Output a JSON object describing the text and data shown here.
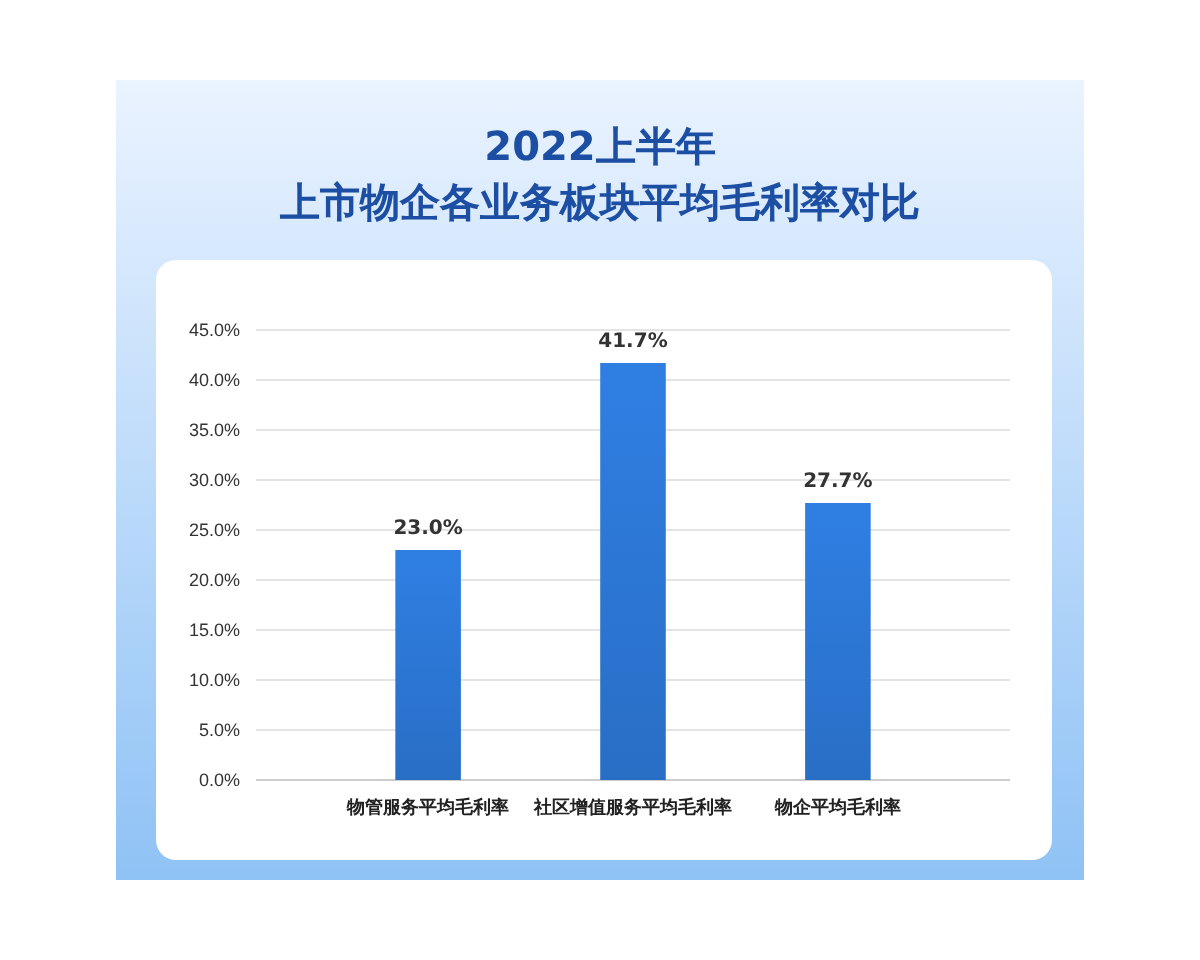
{
  "chart_data": {
    "type": "bar",
    "title": "2022上半年",
    "subtitle": "上市物企各业务板块平均毛利率对比",
    "categories": [
      "物管服务平均毛利率",
      "社区增值服务平均毛利率",
      "物企平均毛利率"
    ],
    "values": [
      23.0,
      41.7,
      27.7
    ],
    "value_labels": [
      "23.0%",
      "41.7%",
      "27.7%"
    ],
    "color": "#2f7fe3",
    "ylim": [
      0,
      45
    ],
    "yticks": [
      {
        "value": 0,
        "label": "0.0%"
      },
      {
        "value": 5,
        "label": "5.0%"
      },
      {
        "value": 10,
        "label": "10.0%"
      },
      {
        "value": 15,
        "label": "15.0%"
      },
      {
        "value": 20,
        "label": "20.0%"
      },
      {
        "value": 25,
        "label": "25.0%"
      },
      {
        "value": 30,
        "label": "30.0%"
      },
      {
        "value": 35,
        "label": "35.0%"
      },
      {
        "value": 40,
        "label": "40.0%"
      },
      {
        "value": 45,
        "label": "45.0%"
      }
    ],
    "grid": "y"
  }
}
